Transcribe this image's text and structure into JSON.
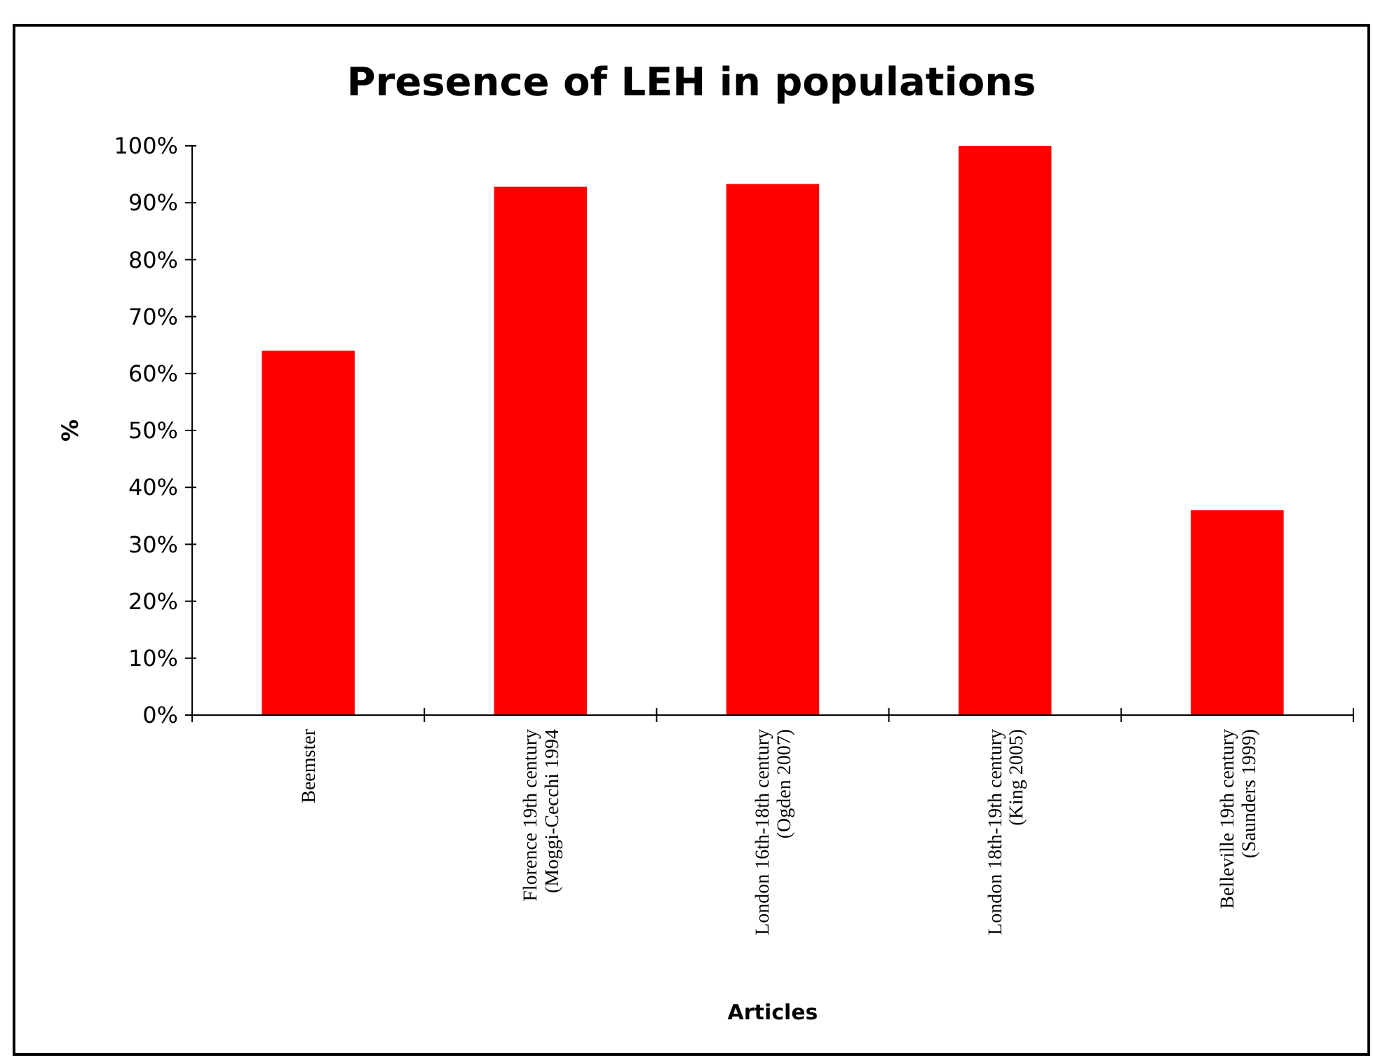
{
  "chart_data": {
    "type": "bar",
    "title": "Presence of LEH in populations",
    "xlabel": "Articles",
    "ylabel": "%",
    "categories": [
      "Beemster",
      "Florence 19th century\n(Moggi-Cecchi 1994",
      "London 16th-18th century\n(Ogden 2007)",
      "London 18th-19th century\n(King 2005)",
      "Belleville 19th century\n(Saunders 1999)"
    ],
    "values": [
      64,
      92.8,
      93.3,
      100,
      36
    ],
    "color": "#ff0000",
    "ylim": [
      0,
      100
    ],
    "yticks": [
      {
        "value": 0,
        "label": "0%"
      },
      {
        "value": 10,
        "label": "10%"
      },
      {
        "value": 20,
        "label": "20%"
      },
      {
        "value": 30,
        "label": "30%"
      },
      {
        "value": 40,
        "label": "40%"
      },
      {
        "value": 50,
        "label": "50%"
      },
      {
        "value": 60,
        "label": "60%"
      },
      {
        "value": 70,
        "label": "70%"
      },
      {
        "value": 80,
        "label": "80%"
      },
      {
        "value": 90,
        "label": "90%"
      },
      {
        "value": 100,
        "label": "100%"
      }
    ],
    "grid": false
  }
}
